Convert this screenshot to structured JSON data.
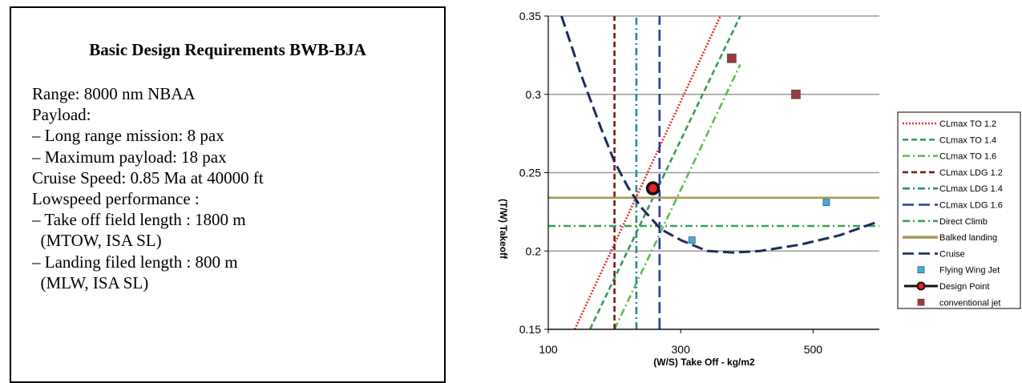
{
  "requirements": {
    "title": "Basic Design Requirements BWB-BJA",
    "lines": [
      "Range: 8000 nm NBAA",
      "Payload:",
      "– Long range mission: 8 pax",
      "– Maximum payload: 18 pax",
      "Cruise Speed: 0.85 Ma at 40000 ft",
      "Lowspeed performance :",
      "– Take off field length : 1800 m",
      "  (MTOW, ISA SL)",
      "– Landing filed length : 800 m",
      "  (MLW, ISA SL)"
    ]
  },
  "chart_data": {
    "type": "line",
    "title": "",
    "xlabel": "(W/S) Take Off - kg/m2",
    "ylabel": "(T/W) Takeoff",
    "xlim": [
      100,
      600
    ],
    "ylim": [
      0.15,
      0.35
    ],
    "xticks": [
      100,
      300,
      500
    ],
    "xtick_labels": [
      "100",
      "300",
      "500"
    ],
    "yticks": [
      0.15,
      0.2,
      0.25,
      0.3,
      0.35
    ],
    "ytick_labels": [
      "0.15",
      "0.2",
      "0.25",
      "0.3",
      "0.35"
    ],
    "grid": "horizontal",
    "legend_position": "right",
    "series": [
      {
        "name": "CLmax TO 1.2",
        "kind": "line",
        "color": "#ee2c2c",
        "dash": "dot",
        "points": [
          [
            140,
            0.15
          ],
          [
            360,
            0.35
          ]
        ]
      },
      {
        "name": "CLmax TO 1.4",
        "kind": "line",
        "color": "#3a9a5a",
        "dash": "dash",
        "points": [
          [
            163,
            0.15
          ],
          [
            390,
            0.35
          ]
        ]
      },
      {
        "name": "CLmax TO 1.6",
        "kind": "line",
        "color": "#5cbf4a",
        "dash": "dashdot",
        "points": [
          [
            200,
            0.15
          ],
          [
            390,
            0.319
          ]
        ]
      },
      {
        "name": "CLmax LDG 1.2",
        "kind": "line",
        "color": "#7a1a1a",
        "dash": "dash",
        "points": [
          [
            200,
            0.15
          ],
          [
            200,
            0.35
          ]
        ]
      },
      {
        "name": "CLmax LDG 1.4",
        "kind": "line",
        "color": "#2a8a8a",
        "dash": "dashdot",
        "points": [
          [
            233,
            0.15
          ],
          [
            233,
            0.35
          ]
        ]
      },
      {
        "name": "CLmax LDG 1.6",
        "kind": "line",
        "color": "#2a3aaa",
        "dash": "longdash",
        "points": [
          [
            268,
            0.15
          ],
          [
            268,
            0.35
          ]
        ]
      },
      {
        "name": "Direct Climb",
        "kind": "line",
        "color": "#3aa05a",
        "dash": "dashdot",
        "points": [
          [
            100,
            0.216
          ],
          [
            600,
            0.216
          ]
        ]
      },
      {
        "name": "Balked landing",
        "kind": "line",
        "color": "#a89a5a",
        "dash": "solid",
        "points": [
          [
            100,
            0.234
          ],
          [
            600,
            0.234
          ]
        ]
      },
      {
        "name": "Cruise",
        "kind": "line",
        "color": "#1c2c5c",
        "dash": "longdash",
        "points": [
          [
            120,
            0.35
          ],
          [
            150,
            0.312
          ],
          [
            180,
            0.278
          ],
          [
            200,
            0.257
          ],
          [
            220,
            0.241
          ],
          [
            240,
            0.228
          ],
          [
            270,
            0.214
          ],
          [
            300,
            0.207
          ],
          [
            340,
            0.2
          ],
          [
            380,
            0.199
          ],
          [
            420,
            0.2
          ],
          [
            480,
            0.204
          ],
          [
            540,
            0.21
          ],
          [
            600,
            0.219
          ]
        ]
      },
      {
        "name": "Flying Wing Jet",
        "kind": "marker",
        "marker": "square",
        "color": "#3ab0e8",
        "points": [
          [
            317,
            0.207
          ],
          [
            520,
            0.231
          ]
        ]
      },
      {
        "name": "Design Point",
        "kind": "marker",
        "marker": "circle",
        "color": "#e82020",
        "points": [
          [
            258,
            0.24
          ]
        ]
      },
      {
        "name": "conventional jet",
        "kind": "marker",
        "marker": "square",
        "color": "#9a3a3a",
        "points": [
          [
            377,
            0.323
          ],
          [
            474,
            0.3
          ]
        ]
      }
    ]
  }
}
